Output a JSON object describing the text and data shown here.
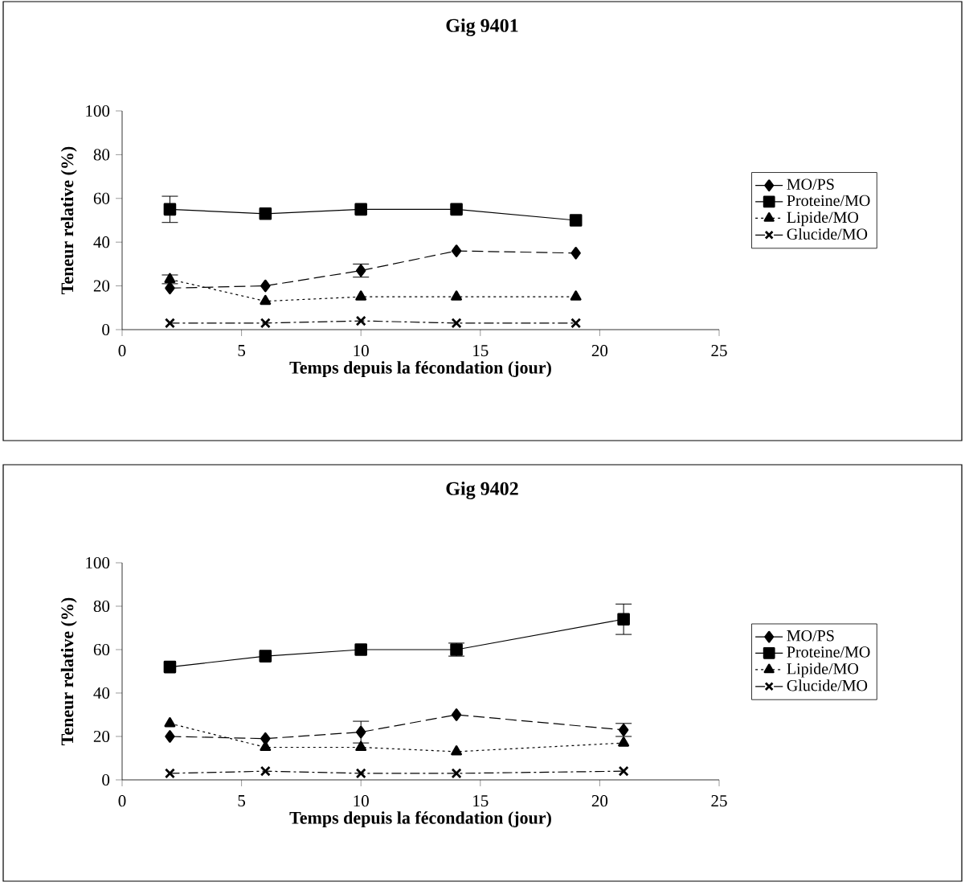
{
  "chart_data": [
    {
      "type": "line",
      "title": "Gig  9401",
      "xlabel": "Temps  depuis  la  fécondation  (jour)",
      "ylabel": "Teneur  relative  (%)",
      "x": [
        2,
        6,
        10,
        14,
        19
      ],
      "xlim": [
        0,
        25
      ],
      "xticks": [
        0,
        5,
        10,
        15,
        20,
        25
      ],
      "ylim": [
        0,
        100
      ],
      "yticks": [
        0,
        20,
        40,
        60,
        80,
        100
      ],
      "legend": "right",
      "grid": false,
      "series": [
        {
          "name": "MO/PS",
          "color": "#000000",
          "marker": "diamond",
          "line_style": "dashed",
          "values": [
            19,
            20,
            27,
            36,
            35
          ],
          "errors": [
            null,
            null,
            3,
            null,
            null
          ]
        },
        {
          "name": "Proteine/MO",
          "color": "#000000",
          "marker": "square",
          "line_style": "solid",
          "values": [
            55,
            53,
            55,
            55,
            50
          ],
          "errors": [
            6,
            null,
            null,
            null,
            null
          ]
        },
        {
          "name": "Lipide/MO",
          "color": "#000000",
          "marker": "triangle",
          "line_style": "dotted",
          "values": [
            23,
            13,
            15,
            15,
            15
          ],
          "errors": [
            2,
            null,
            null,
            null,
            null
          ]
        },
        {
          "name": "Glucide/MO",
          "color": "#000000",
          "marker": "cross",
          "line_style": "dashdot",
          "values": [
            3,
            3,
            4,
            3,
            3
          ]
        }
      ]
    },
    {
      "type": "line",
      "title": "Gig  9402",
      "xlabel": "Temps  depuis  la  fécondation  (jour)",
      "ylabel": "Teneur  relative  (%)",
      "x": [
        2,
        6,
        10,
        14,
        21
      ],
      "xlim": [
        0,
        25
      ],
      "xticks": [
        0,
        5,
        10,
        15,
        20,
        25
      ],
      "ylim": [
        0,
        100
      ],
      "yticks": [
        0,
        20,
        40,
        60,
        80,
        100
      ],
      "legend": "right",
      "grid": false,
      "series": [
        {
          "name": "MO/PS",
          "color": "#000000",
          "marker": "diamond",
          "line_style": "dashed",
          "values": [
            20,
            19,
            22,
            30,
            23
          ],
          "errors": [
            null,
            null,
            5,
            null,
            3
          ]
        },
        {
          "name": "Proteine/MO",
          "color": "#000000",
          "marker": "square",
          "line_style": "solid",
          "values": [
            52,
            57,
            60,
            60,
            74
          ],
          "errors": [
            null,
            null,
            null,
            3,
            7
          ]
        },
        {
          "name": "Lipide/MO",
          "color": "#000000",
          "marker": "triangle",
          "line_style": "dotted",
          "values": [
            26,
            15,
            15,
            13,
            17
          ]
        },
        {
          "name": "Glucide/MO",
          "color": "#000000",
          "marker": "cross",
          "line_style": "dashdot",
          "values": [
            3,
            4,
            3,
            3,
            4
          ]
        }
      ]
    }
  ]
}
